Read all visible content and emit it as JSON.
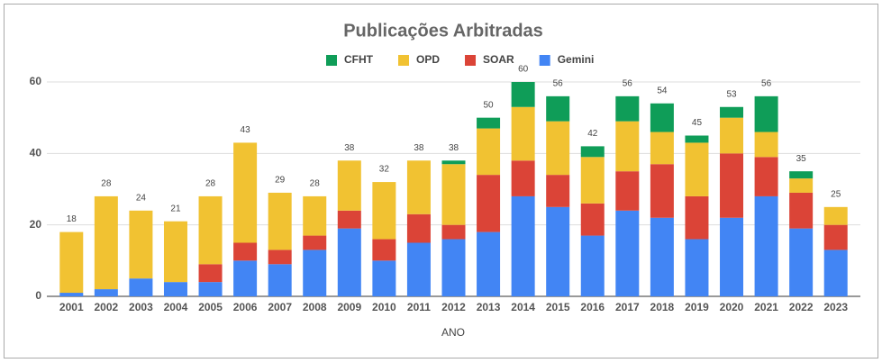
{
  "chart_data": {
    "type": "stacked_bar",
    "title": "Publicações Arbitradas",
    "x_label": "ANO",
    "categories": [
      "2001",
      "2002",
      "2003",
      "2004",
      "2005",
      "2006",
      "2007",
      "2008",
      "2009",
      "2010",
      "2011",
      "2012",
      "2013",
      "2014",
      "2015",
      "2016",
      "2017",
      "2018",
      "2019",
      "2020",
      "2021",
      "2022",
      "2023"
    ],
    "series": [
      {
        "name": "CFHT",
        "color": "#0f9d58",
        "values": [
          0,
          0,
          0,
          0,
          0,
          0,
          0,
          0,
          0,
          0,
          0,
          1,
          3,
          7,
          7,
          3,
          7,
          8,
          2,
          3,
          10,
          2,
          0
        ]
      },
      {
        "name": "OPD",
        "color": "#f1c232",
        "values": [
          17,
          26,
          19,
          17,
          19,
          28,
          16,
          11,
          14,
          16,
          15,
          17,
          13,
          15,
          15,
          13,
          14,
          9,
          15,
          10,
          7,
          4,
          5
        ]
      },
      {
        "name": "SOAR",
        "color": "#db4437",
        "values": [
          0,
          0,
          0,
          0,
          5,
          5,
          4,
          4,
          5,
          6,
          8,
          4,
          16,
          10,
          9,
          9,
          11,
          15,
          12,
          18,
          11,
          10,
          7
        ]
      },
      {
        "name": "Gemini",
        "color": "#4285f4",
        "values": [
          1,
          2,
          5,
          4,
          4,
          10,
          9,
          13,
          19,
          10,
          15,
          16,
          18,
          28,
          25,
          17,
          24,
          22,
          16,
          22,
          28,
          19,
          13
        ]
      }
    ],
    "totals": [
      18,
      28,
      24,
      21,
      28,
      43,
      29,
      28,
      38,
      32,
      38,
      38,
      50,
      60,
      56,
      42,
      56,
      54,
      45,
      53,
      56,
      35,
      25
    ],
    "ylim": [
      0,
      60
    ],
    "yticks": [
      0,
      20,
      40,
      60
    ],
    "grid": true
  }
}
